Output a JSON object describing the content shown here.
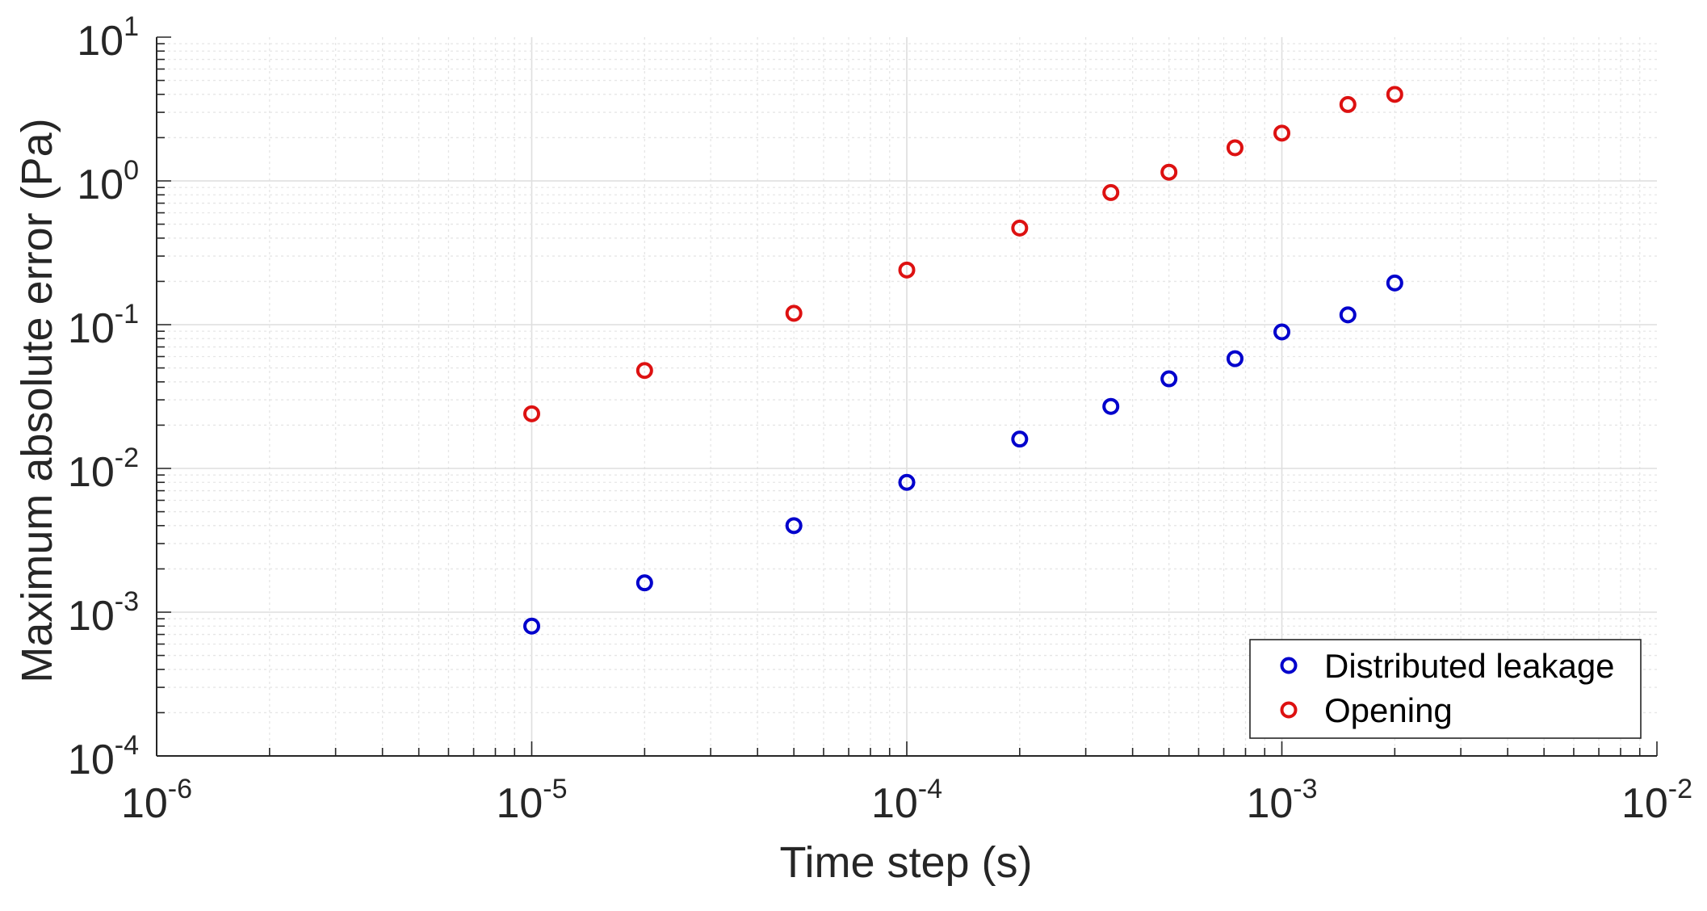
{
  "chart_data": {
    "type": "scatter",
    "title": "",
    "xlabel": "Time step (s)",
    "ylabel": "Maximum absolute error (Pa)",
    "xscale": "log",
    "yscale": "log",
    "xlim": [
      1e-06,
      0.01
    ],
    "ylim": [
      0.0001,
      10
    ],
    "grid": true,
    "minor_grid": true,
    "legend_position": "bottom-right",
    "x_ticks": [
      {
        "value": 1e-06,
        "base": "10",
        "exp": "-6"
      },
      {
        "value": 1e-05,
        "base": "10",
        "exp": "-5"
      },
      {
        "value": 0.0001,
        "base": "10",
        "exp": "-4"
      },
      {
        "value": 0.001,
        "base": "10",
        "exp": "-3"
      },
      {
        "value": 0.01,
        "base": "10",
        "exp": "-2"
      }
    ],
    "y_ticks": [
      {
        "value": 0.0001,
        "base": "10",
        "exp": "-4"
      },
      {
        "value": 0.001,
        "base": "10",
        "exp": "-3"
      },
      {
        "value": 0.01,
        "base": "10",
        "exp": "-2"
      },
      {
        "value": 0.1,
        "base": "10",
        "exp": "-1"
      },
      {
        "value": 1,
        "base": "10",
        "exp": "0"
      },
      {
        "value": 10,
        "base": "10",
        "exp": "1"
      }
    ],
    "series": [
      {
        "name": "Distributed leakage",
        "color": "#0000cc",
        "marker": "circle-open",
        "x": [
          1e-05,
          2e-05,
          5e-05,
          0.0001,
          0.0002,
          0.00035,
          0.0005,
          0.00075,
          0.001,
          0.0015,
          0.002
        ],
        "y": [
          0.0008,
          0.0016,
          0.004,
          0.008,
          0.016,
          0.027,
          0.042,
          0.058,
          0.089,
          0.117,
          0.195
        ]
      },
      {
        "name": "Opening",
        "color": "#dd1111",
        "marker": "circle-open",
        "x": [
          1e-05,
          2e-05,
          5e-05,
          0.0001,
          0.0002,
          0.00035,
          0.0005,
          0.00075,
          0.001,
          0.0015,
          0.002
        ],
        "y": [
          0.024,
          0.048,
          0.12,
          0.24,
          0.47,
          0.83,
          1.15,
          1.7,
          2.15,
          3.4,
          4.0
        ]
      }
    ]
  }
}
